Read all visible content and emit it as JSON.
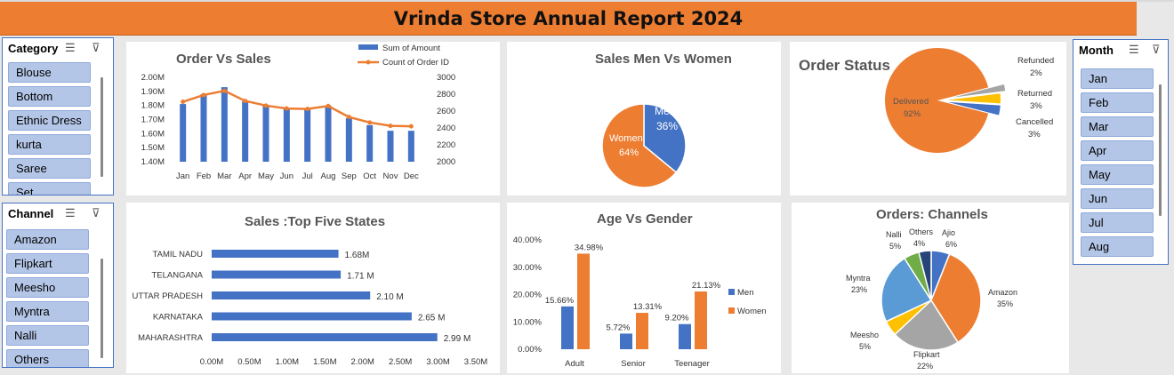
{
  "title": "Vrinda Store Annual Report 2024",
  "category_slicer": {
    "header": "Category",
    "items": [
      "Blouse",
      "Bottom",
      "Ethnic Dress",
      "kurta",
      "Saree",
      "Set"
    ]
  },
  "channel_slicer": {
    "header": "Channel",
    "items": [
      "Amazon",
      "Flipkart",
      "Meesho",
      "Myntra",
      "Nalli",
      "Others"
    ]
  },
  "month_slicer": {
    "header": "Month",
    "items": [
      "Jan",
      "Feb",
      "Mar",
      "Apr",
      "May",
      "Jun",
      "Jul",
      "Aug"
    ]
  },
  "colors": {
    "orange": "#ed7d31",
    "blue": "#4472c4",
    "gray": "#a5a5a5",
    "yellow": "#ffc000",
    "lightblue": "#5b9bd5",
    "green": "#70ad47",
    "navy": "#264478"
  },
  "chart_data": [
    {
      "id": "order_vs_sales",
      "type": "bar",
      "title": "Order Vs Sales",
      "categories": [
        "Jan",
        "Feb",
        "Mar",
        "Apr",
        "May",
        "Jun",
        "Jul",
        "Aug",
        "Sep",
        "Oct",
        "Nov",
        "Dec"
      ],
      "series": [
        {
          "name": "Sum of Amount",
          "type": "bar",
          "axis": "left",
          "values": [
            1.81,
            1.88,
            1.93,
            1.83,
            1.8,
            1.78,
            1.78,
            1.8,
            1.71,
            1.66,
            1.62,
            1.62
          ]
        },
        {
          "name": "Count of Order ID",
          "type": "line",
          "axis": "right",
          "values": [
            2710,
            2790,
            2840,
            2720,
            2665,
            2630,
            2625,
            2660,
            2530,
            2465,
            2425,
            2420
          ]
        }
      ],
      "y_left_ticks": [
        "2.00M",
        "1.90M",
        "1.80M",
        "1.70M",
        "1.60M",
        "1.50M",
        "1.40M"
      ],
      "y_right_ticks": [
        "3000",
        "2800",
        "2600",
        "2400",
        "2200",
        "2000"
      ],
      "ylim_left": [
        1.4,
        2.0
      ],
      "ylim_right": [
        2000,
        3000
      ],
      "legend": "top-right"
    },
    {
      "id": "sales_men_women",
      "type": "pie",
      "title": "Sales Men Vs Women",
      "slices": [
        {
          "label": "Men",
          "value": 36,
          "text": "36%"
        },
        {
          "label": "Women",
          "value": 64,
          "text": "64%"
        }
      ]
    },
    {
      "id": "order_status",
      "type": "pie",
      "title": "Order Status",
      "slices": [
        {
          "label": "Delivered",
          "value": 92,
          "text": "92%"
        },
        {
          "label": "Refunded",
          "value": 2,
          "text": "2%"
        },
        {
          "label": "Returned",
          "value": 3,
          "text": "3%"
        },
        {
          "label": "Cancelled",
          "value": 3,
          "text": "3%"
        }
      ]
    },
    {
      "id": "top_states",
      "type": "bar",
      "orientation": "horizontal",
      "title": "Sales :Top Five States",
      "categories": [
        "TAMIL NADU",
        "TELANGANA",
        "UTTAR PRADESH",
        "KARNATAKA",
        "MAHARASHTRA"
      ],
      "values": [
        1.68,
        1.71,
        2.1,
        2.65,
        2.99
      ],
      "value_labels": [
        "1.68M",
        "1.71 M",
        "2.10 M",
        "2.65 M",
        "2.99 M"
      ],
      "x_ticks": [
        "0.00M",
        "0.50M",
        "1.00M",
        "1.50M",
        "2.00M",
        "2.50M",
        "3.00M",
        "3.50M"
      ],
      "xlim": [
        0,
        3.5
      ]
    },
    {
      "id": "age_vs_gender",
      "type": "bar",
      "title": "Age Vs Gender",
      "categories": [
        "Adult",
        "Senior",
        "Teenager"
      ],
      "series": [
        {
          "name": "Men",
          "values": [
            15.66,
            5.72,
            9.2
          ],
          "labels": [
            "15.66%",
            "5.72%",
            "9.20%"
          ]
        },
        {
          "name": "Women",
          "values": [
            34.98,
            13.31,
            21.13
          ],
          "labels": [
            "34.98%",
            "13.31%",
            "21.13%"
          ]
        }
      ],
      "y_ticks": [
        "40.00%",
        "30.00%",
        "20.00%",
        "10.00%",
        "0.00%"
      ],
      "ylim": [
        0,
        40
      ],
      "legend": "right"
    },
    {
      "id": "orders_channels",
      "type": "pie",
      "title": "Orders: Channels",
      "slices": [
        {
          "label": "Ajio",
          "value": 6,
          "text": "6%"
        },
        {
          "label": "Amazon",
          "value": 35,
          "text": "35%"
        },
        {
          "label": "Flipkart",
          "value": 22,
          "text": "22%"
        },
        {
          "label": "Meesho",
          "value": 5,
          "text": "5%"
        },
        {
          "label": "Myntra",
          "value": 23,
          "text": "23%"
        },
        {
          "label": "Nalli",
          "value": 5,
          "text": "5%"
        },
        {
          "label": "Others",
          "value": 4,
          "text": "4%"
        }
      ]
    }
  ]
}
